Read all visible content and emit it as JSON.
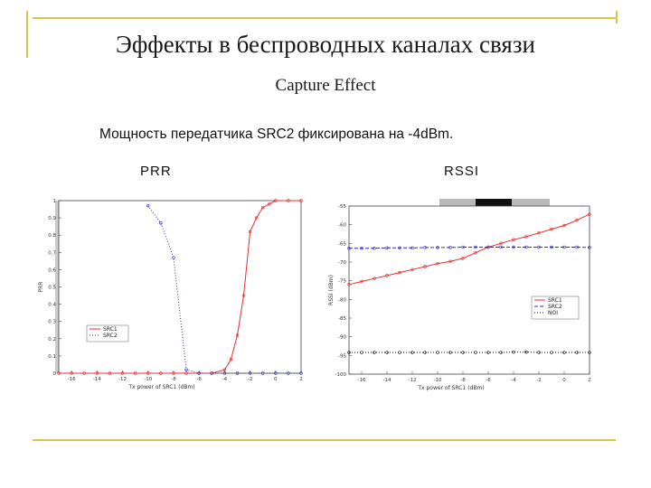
{
  "slide": {
    "title": "Эффекты в беспроводных каналах связи",
    "subtitle": "Capture Effect",
    "note": "Мощность передатчика SRC2 фиксирована на -4dBm.",
    "label_left": "PRR",
    "label_right": "RSSI"
  },
  "colors": {
    "frame": "#d6c64a",
    "src1": "#e03030",
    "src2": "#3030c0",
    "noise": "#111111"
  },
  "chart_data": [
    {
      "type": "line",
      "ylabel": "PRR",
      "xlabel": "Tx power of SRC1 (dBm)",
      "xlim": [
        -17,
        2
      ],
      "ylim": [
        0,
        1
      ],
      "xticks": [
        "-16",
        "-14",
        "-12",
        "-10",
        "-8",
        "-6",
        "-4",
        "-2",
        "0",
        "2"
      ],
      "yticks": [
        "0",
        "0.1",
        "0.2",
        "0.3",
        "0.4",
        "0.5",
        "0.6",
        "0.7",
        "0.8",
        "0.9",
        "1"
      ],
      "legend_position": "bottom-left",
      "series": [
        {
          "name": "SRC1",
          "style": "solid",
          "color": "#e03030",
          "x": [
            -17,
            -16,
            -15,
            -14,
            -13,
            -12,
            -11,
            -10,
            -9,
            -8,
            -7,
            -6,
            -5,
            -4,
            -3.5,
            -3,
            -2.5,
            -2,
            -1.5,
            -1,
            -0.5,
            0,
            1,
            2
          ],
          "y": [
            0,
            0,
            0,
            0,
            0,
            0,
            0,
            0,
            0,
            0,
            0,
            0,
            0,
            0.02,
            0.08,
            0.22,
            0.45,
            0.82,
            0.9,
            0.96,
            0.98,
            1,
            1,
            1
          ]
        },
        {
          "name": "SRC2",
          "style": "dotted",
          "color": "#3030c0",
          "x": [
            -10,
            -9,
            -8,
            -7,
            -6,
            -5,
            -4,
            -3,
            -2,
            -1,
            0,
            1,
            2
          ],
          "y": [
            0.97,
            0.87,
            0.67,
            0.02,
            0,
            0,
            0,
            0,
            0,
            0,
            0,
            0,
            0
          ]
        }
      ]
    },
    {
      "type": "line",
      "ylabel": "RSSI (dBm)",
      "xlabel": "Tx power of SRC1 (dBm)",
      "xlim": [
        -17,
        2
      ],
      "ylim": [
        -100,
        -55
      ],
      "xticks": [
        "-16",
        "-14",
        "-12",
        "-10",
        "-8",
        "-6",
        "-4",
        "-2",
        "0",
        "2"
      ],
      "yticks": [
        "-55",
        "-60",
        "-65",
        "-70",
        "-75",
        "-80",
        "-85",
        "-90",
        "-95",
        "-100"
      ],
      "legend_position": "middle-right",
      "series": [
        {
          "name": "SRC1",
          "style": "solid",
          "color": "#e03030",
          "x": [
            -17,
            -16,
            -15,
            -14,
            -13,
            -12,
            -11,
            -10,
            -9,
            -8,
            -7,
            -6,
            -5,
            -4,
            -3,
            -2,
            -1,
            0,
            1,
            2
          ],
          "y": [
            -76,
            -75.2,
            -74.4,
            -73.6,
            -72.8,
            -72,
            -71.2,
            -70.4,
            -69.8,
            -69,
            -67.5,
            -66,
            -65,
            -64,
            -63.2,
            -62.2,
            -61.2,
            -60.2,
            -58.8,
            -57.2
          ]
        },
        {
          "name": "SRC2",
          "style": "dashed",
          "color": "#3030c0",
          "x": [
            -17,
            -16,
            -15,
            -14,
            -13,
            -12,
            -11,
            -10,
            -9,
            -8,
            -7,
            -6,
            -5,
            -4,
            -3,
            -2,
            -1,
            0,
            1,
            2
          ],
          "y": [
            -66.3,
            -66.3,
            -66.3,
            -66.2,
            -66.2,
            -66.2,
            -66.1,
            -66.1,
            -66.1,
            -66,
            -66,
            -66,
            -66,
            -66,
            -66,
            -66,
            -66,
            -66,
            -66,
            -66.1
          ]
        },
        {
          "name": "NOI",
          "style": "dotted",
          "color": "#111111",
          "x": [
            -17,
            -16,
            -15,
            -14,
            -13,
            -12,
            -11,
            -10,
            -9,
            -8,
            -7,
            -6,
            -5,
            -4,
            -3,
            -2,
            -1,
            0,
            1,
            2
          ],
          "y": [
            -94.2,
            -94.2,
            -94.2,
            -94.2,
            -94.2,
            -94.2,
            -94.2,
            -94.2,
            -94.2,
            -94.2,
            -94.2,
            -94.2,
            -94.2,
            -94.1,
            -94.1,
            -94.2,
            -94.2,
            -94.2,
            -94.2,
            -94.2
          ]
        }
      ]
    }
  ]
}
